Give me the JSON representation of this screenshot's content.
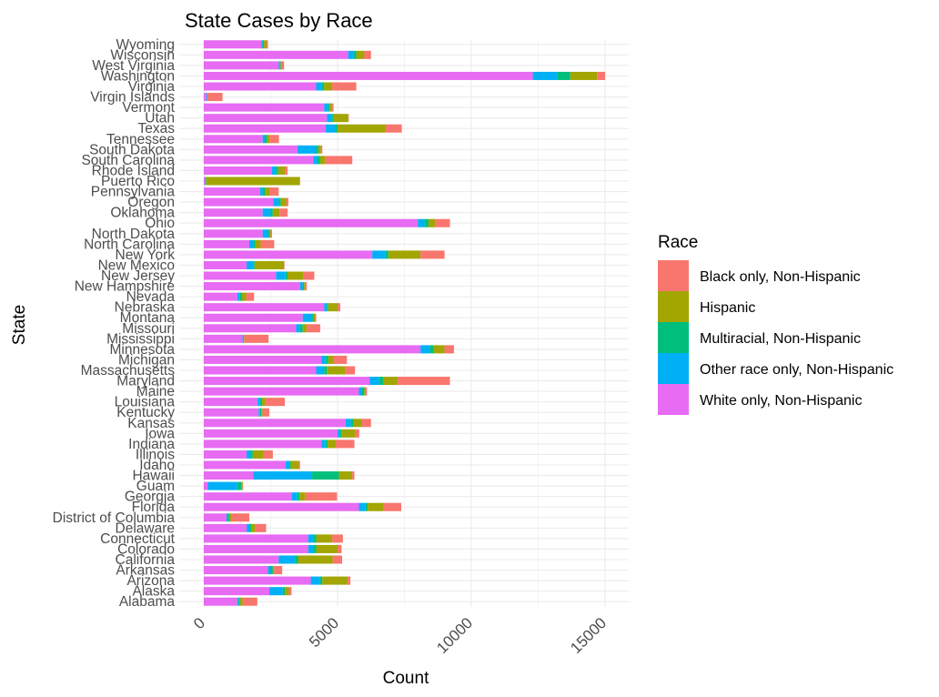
{
  "chart_data": {
    "type": "bar",
    "orientation": "horizontal",
    "stacked": true,
    "title": "State Cases by Race",
    "xlabel": "Count",
    "ylabel": "State",
    "xlim": [
      0,
      15500
    ],
    "xticks": [
      0,
      5000,
      10000,
      15000
    ],
    "xtick_labels": [
      "0",
      "5000",
      "10000",
      "15000"
    ],
    "grid": true,
    "legend": {
      "title": "Race",
      "position": "right",
      "entries": [
        {
          "name": "Black only, Non-Hispanic",
          "color": "#F8766D"
        },
        {
          "name": "Hispanic",
          "color": "#A3A500"
        },
        {
          "name": "Multiracial, Non-Hispanic",
          "color": "#00BF7D"
        },
        {
          "name": "Other race only, Non-Hispanic",
          "color": "#00B0F6"
        },
        {
          "name": "White only, Non-Hispanic",
          "color": "#E76BF3"
        }
      ]
    },
    "categories": [
      "Alabama",
      "Alaska",
      "Arizona",
      "Arkansas",
      "California",
      "Colorado",
      "Connecticut",
      "Delaware",
      "District of Columbia",
      "Florida",
      "Georgia",
      "Guam",
      "Hawaii",
      "Idaho",
      "Illinois",
      "Indiana",
      "Iowa",
      "Kansas",
      "Kentucky",
      "Louisiana",
      "Maine",
      "Maryland",
      "Massachusetts",
      "Michigan",
      "Minnesota",
      "Mississippi",
      "Missouri",
      "Montana",
      "Nebraska",
      "Nevada",
      "New Hampshire",
      "New Jersey",
      "New Mexico",
      "New York",
      "North Carolina",
      "North Dakota",
      "Ohio",
      "Oklahoma",
      "Oregon",
      "Pennsylvania",
      "Puerto Rico",
      "Rhode Island",
      "South Carolina",
      "South Dakota",
      "Tennessee",
      "Texas",
      "Utah",
      "Vermont",
      "Virgin Islands",
      "Virginia",
      "Washington",
      "West Virginia",
      "Wisconsin",
      "Wyoming"
    ],
    "series": [
      {
        "name": "White only, Non-Hispanic",
        "values": [
          1250,
          2450,
          4000,
          2400,
          2800,
          3900,
          3900,
          1600,
          850,
          5800,
          3300,
          150,
          1850,
          3050,
          1600,
          4400,
          5000,
          5300,
          2050,
          2000,
          5800,
          6200,
          4200,
          4400,
          8100,
          1450,
          3450,
          3700,
          4500,
          1250,
          3600,
          2700,
          1600,
          6300,
          1700,
          2200,
          8000,
          2200,
          2600,
          2100,
          50,
          2550,
          4100,
          3500,
          2200,
          4550,
          4600,
          4500,
          100,
          4200,
          12300,
          2800,
          5400,
          2150
        ]
      },
      {
        "name": "Other race only, Non-Hispanic",
        "values": [
          50,
          500,
          350,
          100,
          600,
          200,
          200,
          100,
          50,
          250,
          200,
          1100,
          2200,
          150,
          150,
          150,
          80,
          200,
          50,
          100,
          100,
          350,
          300,
          150,
          350,
          30,
          150,
          350,
          100,
          100,
          100,
          350,
          250,
          500,
          150,
          200,
          250,
          300,
          200,
          100,
          20,
          150,
          150,
          700,
          80,
          350,
          200,
          150,
          30,
          200,
          900,
          50,
          200,
          50
        ]
      },
      {
        "name": "Multiracial, Non-Hispanic",
        "values": [
          50,
          80,
          80,
          80,
          120,
          100,
          100,
          80,
          50,
          80,
          80,
          150,
          1000,
          50,
          80,
          80,
          80,
          100,
          50,
          80,
          100,
          150,
          100,
          100,
          150,
          20,
          100,
          50,
          50,
          80,
          50,
          80,
          50,
          100,
          80,
          50,
          150,
          80,
          80,
          100,
          20,
          80,
          100,
          80,
          80,
          100,
          50,
          50,
          10,
          100,
          500,
          20,
          100,
          50
        ]
      },
      {
        "name": "Hispanic",
        "values": [
          100,
          150,
          950,
          50,
          1300,
          800,
          600,
          150,
          100,
          600,
          200,
          50,
          500,
          300,
          400,
          300,
          500,
          300,
          50,
          100,
          50,
          550,
          700,
          200,
          400,
          20,
          150,
          50,
          350,
          150,
          50,
          600,
          1100,
          1200,
          200,
          50,
          250,
          250,
          200,
          150,
          3500,
          250,
          200,
          100,
          100,
          1800,
          550,
          100,
          10,
          300,
          1000,
          50,
          300,
          100
        ]
      },
      {
        "name": "Black only, Non-Hispanic",
        "values": [
          550,
          100,
          100,
          300,
          350,
          150,
          400,
          400,
          650,
          650,
          1200,
          20,
          80,
          50,
          350,
          700,
          150,
          350,
          250,
          750,
          50,
          1950,
          350,
          500,
          350,
          900,
          500,
          50,
          100,
          300,
          50,
          400,
          20,
          900,
          500,
          50,
          550,
          300,
          80,
          350,
          10,
          100,
          1000,
          50,
          350,
          600,
          20,
          50,
          550,
          900,
          300,
          80,
          250,
          50
        ]
      }
    ]
  }
}
